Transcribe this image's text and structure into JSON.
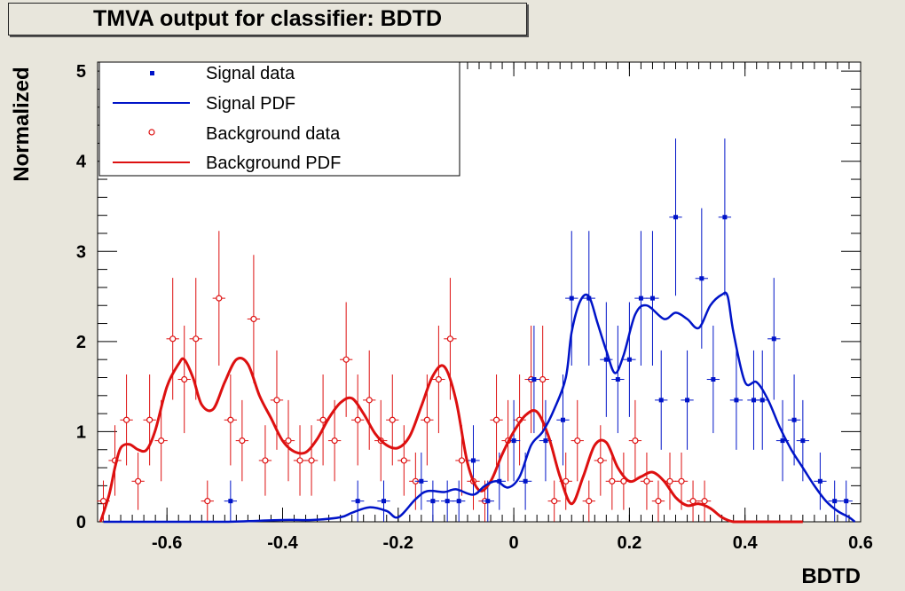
{
  "chart_data": {
    "type": "scatter",
    "title": "TMVA output for classifier: BDTD",
    "xlabel": "BDTD",
    "ylabel": "Normalized",
    "xlim": [
      -0.72,
      0.6
    ],
    "ylim": [
      0,
      5.1
    ],
    "xticks": [
      -0.6,
      -0.4,
      -0.2,
      0,
      0.2,
      0.4,
      0.6
    ],
    "yticks": [
      0,
      1,
      2,
      3,
      4,
      5
    ],
    "bin_width": 0.022,
    "legend": {
      "placement": "top-left",
      "entries": [
        "Signal data",
        "Signal PDF",
        "Background data",
        "Background PDF"
      ]
    },
    "colors": {
      "signal": "#0014c8",
      "background": "#dd1010"
    },
    "signal_data": {
      "x": [
        -0.49,
        -0.27,
        -0.225,
        -0.16,
        -0.14,
        -0.115,
        -0.095,
        -0.07,
        -0.045,
        -0.025,
        0.0,
        0.02,
        0.035,
        0.055,
        0.085,
        0.1,
        0.13,
        0.16,
        0.18,
        0.2,
        0.22,
        0.24,
        0.255,
        0.28,
        0.3,
        0.325,
        0.345,
        0.365,
        0.385,
        0.415,
        0.43,
        0.45,
        0.465,
        0.485,
        0.5,
        0.53,
        0.555,
        0.575
      ],
      "y": [
        0.23,
        0.23,
        0.23,
        0.45,
        0.23,
        0.23,
        0.23,
        0.68,
        0.23,
        0.45,
        0.9,
        0.45,
        1.58,
        0.9,
        1.13,
        2.48,
        2.48,
        1.8,
        1.58,
        1.8,
        2.48,
        2.48,
        1.35,
        3.38,
        1.35,
        2.7,
        1.58,
        3.38,
        1.35,
        1.35,
        1.35,
        2.03,
        0.9,
        1.13,
        0.9,
        0.45,
        0.23,
        0.23
      ]
    },
    "background_data": {
      "x": [
        -0.71,
        -0.69,
        -0.67,
        -0.65,
        -0.63,
        -0.61,
        -0.59,
        -0.57,
        -0.55,
        -0.53,
        -0.51,
        -0.49,
        -0.47,
        -0.45,
        -0.43,
        -0.41,
        -0.39,
        -0.37,
        -0.35,
        -0.33,
        -0.31,
        -0.29,
        -0.27,
        -0.25,
        -0.23,
        -0.21,
        -0.19,
        -0.17,
        -0.15,
        -0.13,
        -0.11,
        -0.09,
        -0.07,
        -0.05,
        -0.03,
        -0.01,
        0.01,
        0.03,
        0.05,
        0.07,
        0.09,
        0.11,
        0.13,
        0.15,
        0.17,
        0.19,
        0.21,
        0.23,
        0.25,
        0.27,
        0.29,
        0.31,
        0.33,
        0.35
      ],
      "y": [
        0.23,
        0.68,
        1.13,
        0.45,
        1.13,
        0.9,
        2.03,
        1.58,
        2.03,
        0.23,
        2.48,
        1.13,
        0.9,
        2.25,
        0.68,
        1.35,
        0.9,
        0.68,
        0.68,
        1.13,
        0.9,
        1.8,
        1.13,
        1.35,
        0.9,
        1.13,
        0.68,
        0.45,
        1.13,
        1.58,
        2.03,
        0.68,
        0.45,
        0.23,
        1.13,
        0.9,
        1.13,
        1.58,
        1.58,
        0.23,
        0.45,
        0.9,
        0.23,
        0.68,
        0.45,
        0.45,
        0.9,
        0.45,
        0.23,
        0.45,
        0.45,
        0.23,
        0.23,
        0.0
      ]
    },
    "signal_pdf": {
      "x": [
        -0.71,
        -0.6,
        -0.5,
        -0.4,
        -0.35,
        -0.3,
        -0.28,
        -0.25,
        -0.22,
        -0.2,
        -0.17,
        -0.15,
        -0.12,
        -0.1,
        -0.07,
        -0.05,
        -0.03,
        -0.01,
        0.01,
        0.03,
        0.05,
        0.07,
        0.09,
        0.1,
        0.115,
        0.13,
        0.145,
        0.16,
        0.175,
        0.19,
        0.21,
        0.23,
        0.26,
        0.28,
        0.3,
        0.32,
        0.34,
        0.36,
        0.37,
        0.38,
        0.4,
        0.42,
        0.44,
        0.46,
        0.48,
        0.5,
        0.52,
        0.54,
        0.56,
        0.58,
        0.59
      ],
      "y": [
        0.0,
        0.0,
        0.0,
        0.02,
        0.02,
        0.05,
        0.1,
        0.16,
        0.12,
        0.05,
        0.25,
        0.34,
        0.33,
        0.36,
        0.3,
        0.4,
        0.45,
        0.38,
        0.5,
        0.85,
        1.0,
        1.25,
        1.6,
        2.1,
        2.45,
        2.5,
        2.2,
        1.9,
        1.65,
        1.85,
        2.3,
        2.4,
        2.25,
        2.32,
        2.25,
        2.15,
        2.4,
        2.52,
        2.5,
        2.1,
        1.55,
        1.55,
        1.35,
        1.05,
        0.8,
        0.6,
        0.4,
        0.23,
        0.12,
        0.05,
        0.0
      ]
    },
    "background_pdf": {
      "x": [
        -0.715,
        -0.7,
        -0.69,
        -0.68,
        -0.665,
        -0.65,
        -0.635,
        -0.62,
        -0.6,
        -0.58,
        -0.57,
        -0.555,
        -0.54,
        -0.52,
        -0.5,
        -0.48,
        -0.46,
        -0.44,
        -0.42,
        -0.4,
        -0.38,
        -0.36,
        -0.34,
        -0.32,
        -0.3,
        -0.28,
        -0.26,
        -0.24,
        -0.22,
        -0.2,
        -0.18,
        -0.16,
        -0.14,
        -0.12,
        -0.1,
        -0.08,
        -0.06,
        -0.04,
        -0.02,
        0.0,
        0.02,
        0.04,
        0.06,
        0.08,
        0.1,
        0.12,
        0.14,
        0.16,
        0.18,
        0.2,
        0.22,
        0.24,
        0.26,
        0.28,
        0.3,
        0.32,
        0.34,
        0.36,
        0.38,
        0.4,
        0.45,
        0.5
      ],
      "y": [
        0.0,
        0.3,
        0.6,
        0.82,
        0.86,
        0.8,
        0.8,
        1.02,
        1.5,
        1.75,
        1.8,
        1.6,
        1.3,
        1.25,
        1.55,
        1.8,
        1.75,
        1.4,
        1.15,
        0.9,
        0.78,
        0.77,
        0.92,
        1.15,
        1.32,
        1.37,
        1.2,
        0.98,
        0.85,
        0.82,
        0.95,
        1.28,
        1.62,
        1.72,
        1.35,
        0.65,
        0.35,
        0.45,
        0.75,
        1.0,
        1.18,
        1.22,
        0.95,
        0.5,
        0.2,
        0.5,
        0.85,
        0.88,
        0.6,
        0.45,
        0.5,
        0.55,
        0.45,
        0.27,
        0.18,
        0.2,
        0.15,
        0.05,
        0.0,
        0.0,
        0.0,
        0.0
      ]
    }
  }
}
